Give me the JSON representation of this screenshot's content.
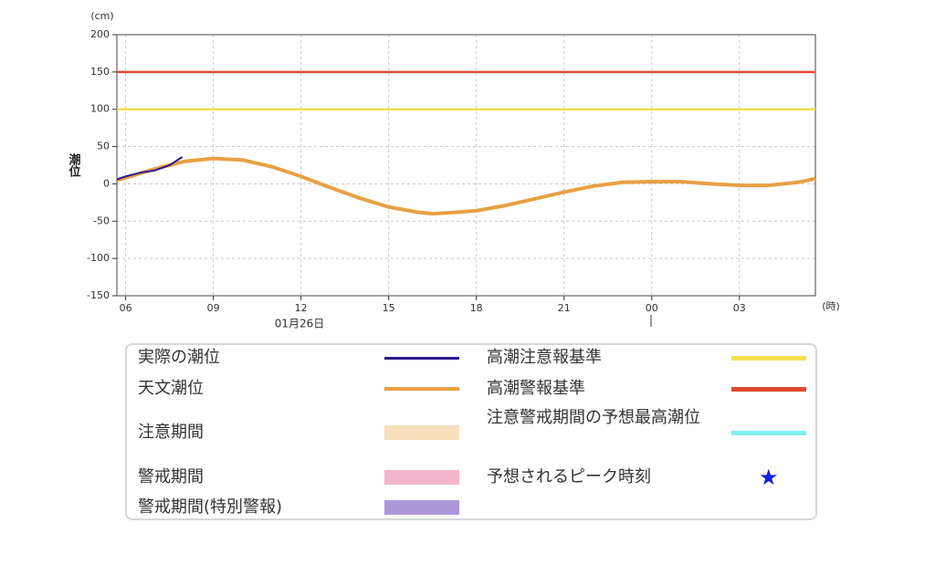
{
  "chart_data": {
    "type": "line",
    "y_unit": "(cm)",
    "x_unit": "(時)",
    "y_title": "潮位",
    "date_label": "01月26日",
    "xlim": [
      5.7,
      29.6
    ],
    "ylim": [
      -150,
      200
    ],
    "xticks": [
      {
        "value": 6,
        "label": "06"
      },
      {
        "value": 9,
        "label": "09"
      },
      12,
      15,
      18,
      21,
      {
        "value": 24,
        "label": "00"
      },
      {
        "value": 27,
        "label": "03"
      }
    ],
    "yticks": [
      -150,
      -100,
      -50,
      0,
      50,
      100,
      150,
      200
    ],
    "grid": true,
    "series": [
      {
        "name": "実際の潮位",
        "color": "#2a1a8c",
        "width": 2,
        "x": [
          5.7,
          6,
          6.5,
          7,
          7.5,
          7.94
        ],
        "values": [
          6,
          10,
          15,
          18,
          25,
          36
        ]
      },
      {
        "name": "天文潮位",
        "color": "#e8a044",
        "width": 4,
        "x": [
          5.7,
          6,
          7,
          8,
          9,
          10,
          11,
          12,
          13,
          14,
          15,
          16,
          16.5,
          17,
          18,
          19,
          20,
          21,
          22,
          23,
          24,
          25,
          26,
          27,
          28,
          29,
          29.6
        ],
        "values": [
          5,
          8,
          20,
          30,
          34,
          32,
          23,
          10,
          -5,
          -19,
          -31,
          -38,
          -40,
          -39,
          -36,
          -29,
          -20,
          -11,
          -3,
          2,
          3,
          3,
          0,
          -2,
          -2,
          2,
          7
        ]
      }
    ],
    "thresholds": [
      {
        "name": "高潮注意報基準",
        "value": 100,
        "color": "#f0e050"
      },
      {
        "name": "高潮警報基準",
        "value": 150,
        "color": "#e04a30"
      }
    ],
    "other_legend": [
      {
        "name": "注意期間",
        "color": "#f8dfbc",
        "kind": "band"
      },
      {
        "name": "警戒期間",
        "color": "#f4b4cc",
        "kind": "band"
      },
      {
        "name": "警戒期間(特別警報)",
        "color": "#ae96da",
        "kind": "band"
      },
      {
        "name": "注意警戒期間の予想最高潮位",
        "color": "#80f0f0",
        "kind": "line"
      },
      {
        "name": "予想されるピーク時刻",
        "color": "#1020e0",
        "kind": "star"
      }
    ]
  }
}
